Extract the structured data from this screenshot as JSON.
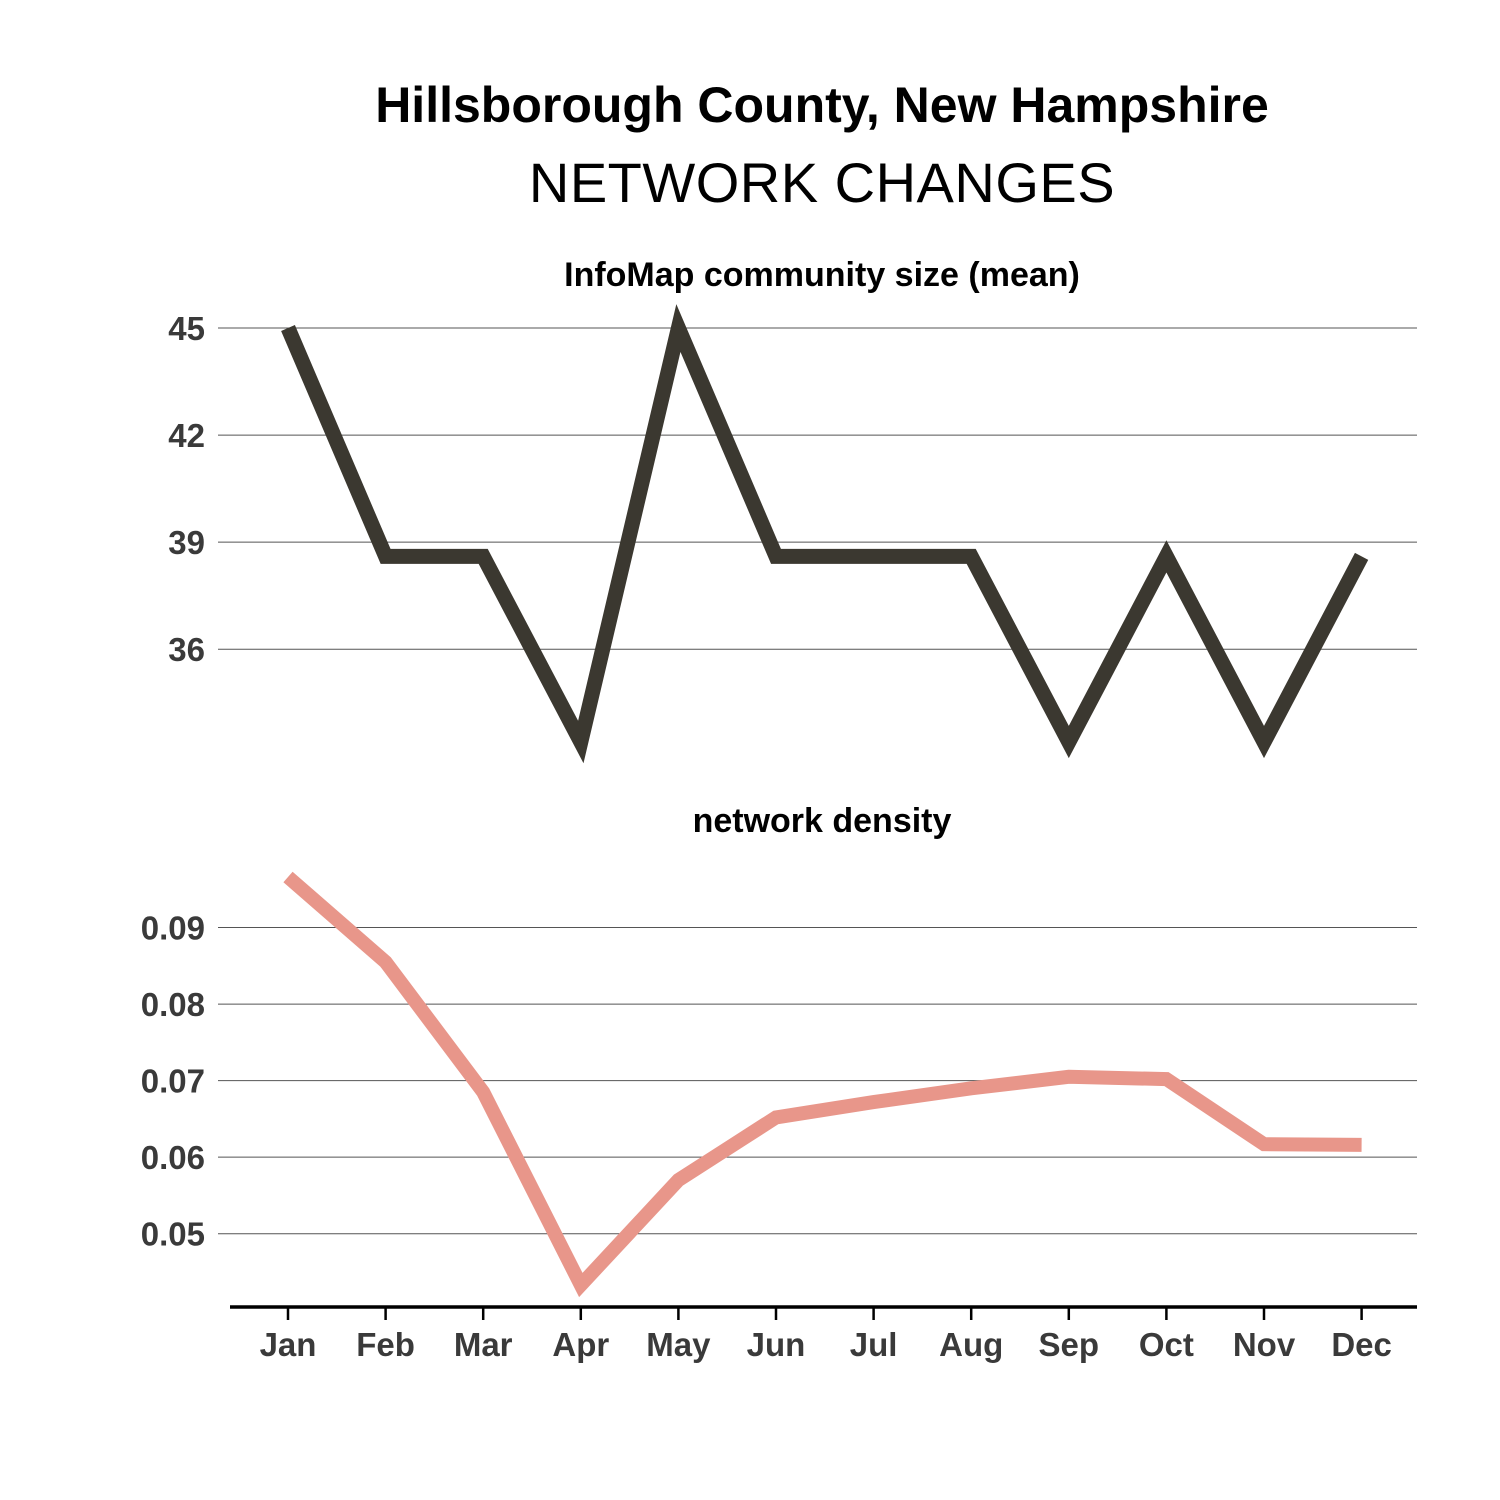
{
  "header": {
    "title": "Hillsborough County, New Hampshire",
    "subtitle": "NETWORK CHANGES"
  },
  "chart_data": [
    {
      "type": "line",
      "title": "InfoMap community size (mean)",
      "categories": [
        "Jan",
        "Feb",
        "Mar",
        "Apr",
        "May",
        "Jun",
        "Jul",
        "Aug",
        "Sep",
        "Oct",
        "Nov",
        "Dec"
      ],
      "values": [
        45.0,
        38.6,
        38.6,
        33.4,
        45.0,
        38.6,
        38.6,
        38.6,
        33.4,
        38.6,
        33.4,
        38.6
      ],
      "yticks": [
        36,
        39,
        42,
        45
      ],
      "ylim": [
        33.4,
        45.0
      ],
      "color": "#3b3830",
      "grid": "horizontal",
      "xlabel": "",
      "ylabel": ""
    },
    {
      "type": "line",
      "title": "network density",
      "categories": [
        "Jan",
        "Feb",
        "Mar",
        "Apr",
        "May",
        "Jun",
        "Jul",
        "Aug",
        "Sep",
        "Oct",
        "Nov",
        "Dec"
      ],
      "values": [
        0.0966,
        0.0855,
        0.0685,
        0.0433,
        0.057,
        0.0652,
        0.0672,
        0.069,
        0.0705,
        0.0702,
        0.0617,
        0.0616
      ],
      "yticks": [
        0.05,
        0.06,
        0.07,
        0.08,
        0.09
      ],
      "ylim": [
        0.0433,
        0.0966
      ],
      "color": "#e8968a",
      "grid": "horizontal",
      "xlabel": "",
      "ylabel": ""
    }
  ]
}
